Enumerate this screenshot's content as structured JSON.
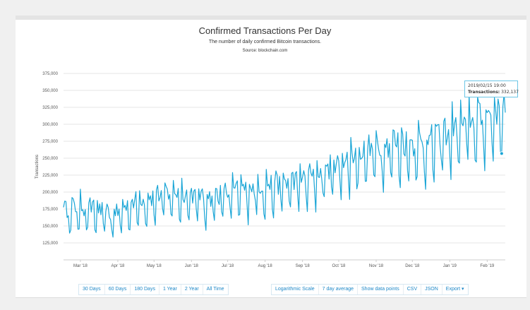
{
  "chart_data": {
    "type": "line",
    "title": "Confirmed Transactions Per Day",
    "subtitle": "The number of daily confirmed Bitcoin transactions.",
    "source": "Source: blockchain.com",
    "ylabel": "Transactions",
    "xlabel": "",
    "ylim": [
      100000,
      375000
    ],
    "xlim_days": [
      0,
      366
    ],
    "y_ticks": [
      125000,
      150000,
      175000,
      200000,
      225000,
      250000,
      275000,
      300000,
      325000,
      350000,
      375000
    ],
    "y_tick_labels": [
      "125,000",
      "150,000",
      "175,000",
      "200,000",
      "225,000",
      "250,000",
      "275,000",
      "300,000",
      "325,000",
      "350,000",
      "375,000"
    ],
    "x_ticks_day": [
      14,
      45,
      75,
      106,
      136,
      167,
      198,
      228,
      259,
      289,
      320,
      351
    ],
    "x_tick_labels": [
      "Mar '18",
      "Apr '18",
      "May '18",
      "Jun '18",
      "Jul '18",
      "Aug '18",
      "Sep '18",
      "Oct '18",
      "Nov '18",
      "Dec '18",
      "Jan '19",
      "Feb '19"
    ],
    "series": [
      {
        "name": "Transactions",
        "color": "#1aa5d6",
        "weekly_pattern": [
          1.12,
          1.06,
          1.04,
          1.03,
          1.05,
          0.88,
          0.82
        ],
        "base_points": [
          {
            "day": 0,
            "value": 168000
          },
          {
            "day": 20,
            "value": 172000
          },
          {
            "day": 40,
            "value": 160000
          },
          {
            "day": 60,
            "value": 180000
          },
          {
            "day": 90,
            "value": 193000
          },
          {
            "day": 120,
            "value": 185000
          },
          {
            "day": 150,
            "value": 198000
          },
          {
            "day": 180,
            "value": 205000
          },
          {
            "day": 210,
            "value": 218000
          },
          {
            "day": 240,
            "value": 245000
          },
          {
            "day": 270,
            "value": 262000
          },
          {
            "day": 300,
            "value": 263000
          },
          {
            "day": 330,
            "value": 288000
          },
          {
            "day": 366,
            "value": 312000
          }
        ]
      }
    ],
    "tooltip": {
      "date": "2019/02/15 19:00",
      "label": "Transactions:",
      "value": "332,137"
    }
  },
  "range_buttons": [
    "30 Days",
    "60 Days",
    "180 Days",
    "1 Year",
    "2 Year",
    "All Time"
  ],
  "option_buttons": [
    "Logarithmic Scale",
    "7 day average",
    "Show data points",
    "CSV",
    "JSON",
    "Export ▾"
  ],
  "colors": {
    "line": "#1aa5d6",
    "grid": "#e6e6e6",
    "button_text": "#1e88c8"
  }
}
